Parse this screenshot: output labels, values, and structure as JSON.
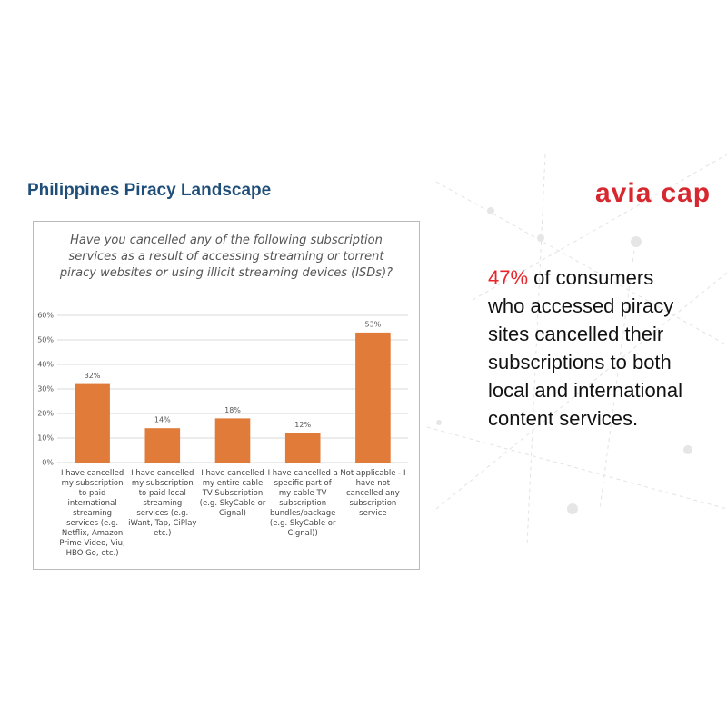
{
  "slide_title": "Philippines Piracy  Landscape",
  "logo": {
    "left": "avia",
    "right": "cap"
  },
  "callout": {
    "highlight": "47%",
    "text": "of consumers who accessed piracy sites cancelled their subscriptions to both local and international content services."
  },
  "chart_data": {
    "type": "bar",
    "title": "Have you cancelled any of the following subscription services as a result of accessing streaming or torrent piracy websites or using illicit streaming devices (ISDs)?",
    "categories": [
      "I have cancelled my subscription to paid international streaming services (e.g. Netflix, Amazon Prime Video, Viu, HBO Go, etc.)",
      "I have cancelled my subscription to paid local streaming services (e.g. iWant, Tap, CiPlay etc.)",
      "I have cancelled my entire cable TV Subscription (e.g. SkyCable or Cignal)",
      "I have cancelled a specific part of my cable TV subscription bundles/package (e.g. SkyCable or Cignal))",
      "Not applicable - I have not cancelled any subscription service"
    ],
    "values": [
      32,
      14,
      18,
      12,
      53
    ],
    "value_labels": [
      "32%",
      "14%",
      "18%",
      "12%",
      "53%"
    ],
    "color": "#e07b39",
    "ylim": [
      0,
      60
    ],
    "yticks": [
      {
        "value": 0,
        "label": "0%"
      },
      {
        "value": 10,
        "label": "10%"
      },
      {
        "value": 20,
        "label": "20%"
      },
      {
        "value": 30,
        "label": "30%"
      },
      {
        "value": 40,
        "label": "40%"
      },
      {
        "value": 50,
        "label": "50%"
      },
      {
        "value": 60,
        "label": "60%"
      }
    ],
    "grid": true
  }
}
